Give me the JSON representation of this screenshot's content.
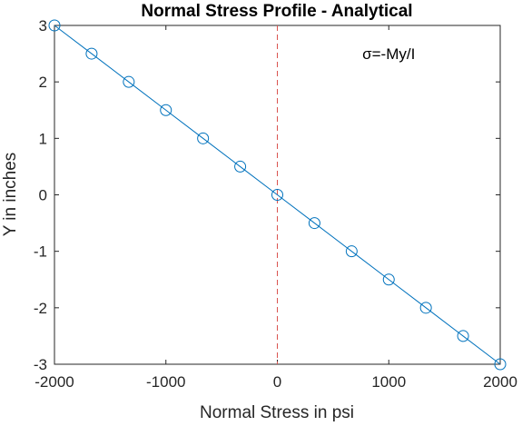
{
  "chart_data": {
    "type": "line",
    "title": "Normal Stress Profile - Analytical",
    "xlabel": "Normal Stress in psi",
    "ylabel": "Y in inches",
    "xlim": [
      -2000,
      2000
    ],
    "ylim": [
      -3,
      3
    ],
    "xticks": [
      -2000,
      -1000,
      0,
      1000,
      2000
    ],
    "xtick_labels": [
      "-2000",
      "-1000",
      "0",
      "1000",
      "2000"
    ],
    "yticks": [
      -3,
      -2,
      -1,
      0,
      1,
      2,
      3
    ],
    "ytick_labels": [
      "-3",
      "-2",
      "-1",
      "0",
      "1",
      "2",
      "3"
    ],
    "grid": false,
    "annotation": {
      "text": "σ=-My/I",
      "x": 1000,
      "y": 2.5
    },
    "reference_line": {
      "x": 0,
      "style": "dashed",
      "color": "#d9534f"
    },
    "series": [
      {
        "color": "#0072BD",
        "marker": "circle",
        "x": [
          -2000,
          -1666.7,
          -1333.3,
          -1000,
          -666.7,
          -333.3,
          0,
          333.3,
          666.7,
          1000,
          1333.3,
          1666.7,
          2000
        ],
        "y": [
          3,
          2.5,
          2,
          1.5,
          1,
          0.5,
          0,
          -0.5,
          -1,
          -1.5,
          -2,
          -2.5,
          -3
        ]
      }
    ]
  }
}
